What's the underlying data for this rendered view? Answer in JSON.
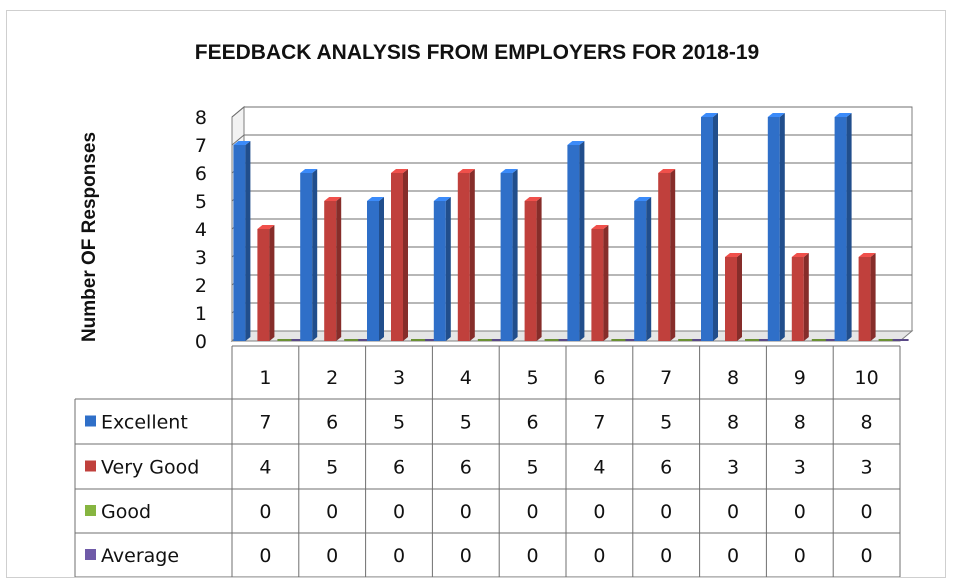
{
  "chart_data": {
    "type": "bar",
    "title": "FEEDBACK ANALYSIS FROM EMPLOYERS FOR 2018-19",
    "ylabel": "Number OF Responses",
    "xlabel": "",
    "ylim": [
      0,
      8
    ],
    "yticks": [
      "0",
      "1",
      "2",
      "3",
      "4",
      "5",
      "6",
      "7",
      "8"
    ],
    "grid": true,
    "legend_placement": "data-table",
    "style": "3d-column",
    "categories": [
      "1",
      "2",
      "3",
      "4",
      "5",
      "6",
      "7",
      "8",
      "9",
      "10"
    ],
    "series": [
      {
        "name": "Excellent",
        "color": "#2f6fc8",
        "values": [
          7,
          6,
          5,
          5,
          6,
          7,
          5,
          8,
          8,
          8
        ],
        "labels": [
          "7",
          "6",
          "5",
          "5",
          "6",
          "7",
          "5",
          "8",
          "8",
          "8"
        ]
      },
      {
        "name": "Very Good",
        "color": "#c0403c",
        "values": [
          4,
          5,
          6,
          6,
          5,
          4,
          6,
          3,
          3,
          3
        ],
        "labels": [
          "4",
          "5",
          "6",
          "6",
          "5",
          "4",
          "6",
          "3",
          "3",
          "3"
        ]
      },
      {
        "name": "Good",
        "color": "#86b540",
        "values": [
          0,
          0,
          0,
          0,
          0,
          0,
          0,
          0,
          0,
          0
        ],
        "labels": [
          "0",
          "0",
          "0",
          "0",
          "0",
          "0",
          "0",
          "0",
          "0",
          "0"
        ]
      },
      {
        "name": "Average",
        "color": "#6f5aa8",
        "values": [
          0,
          0,
          0,
          0,
          0,
          0,
          0,
          0,
          0,
          0
        ],
        "labels": [
          "0",
          "0",
          "0",
          "0",
          "0",
          "0",
          "0",
          "0",
          "0",
          "0"
        ]
      }
    ]
  }
}
